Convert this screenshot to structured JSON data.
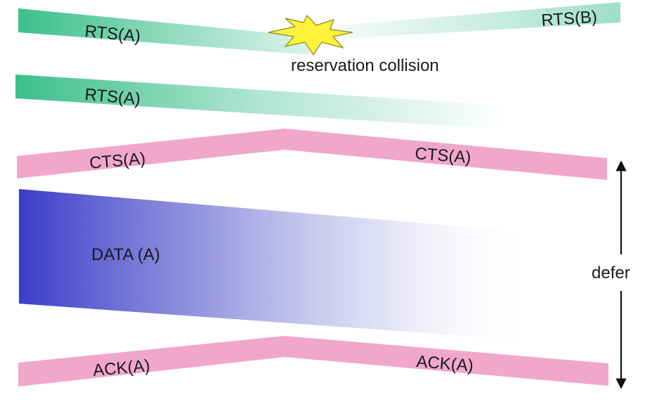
{
  "labels": {
    "rts_a_1": "RTS(A)",
    "rts_b": "RTS(B)",
    "collision": "reservation collision",
    "rts_a_2": "RTS(A)",
    "cts_a_left": "CTS(A)",
    "cts_a_right": "CTS(A)",
    "data_a": "DATA (A)",
    "ack_a_left": "ACK(A)",
    "ack_a_right": "ACK(A)",
    "defer": "defer"
  },
  "colors": {
    "rts_green": "#3cbf8e",
    "cts_ack_pink": "#f0a7cb",
    "data_blue": "#3a3dc8",
    "collision_yellow": "#fff23a",
    "text": "#1a1a1a"
  },
  "icons": {
    "collision": "starburst-icon",
    "defer_arrow": "double-headed-vertical-arrow"
  }
}
